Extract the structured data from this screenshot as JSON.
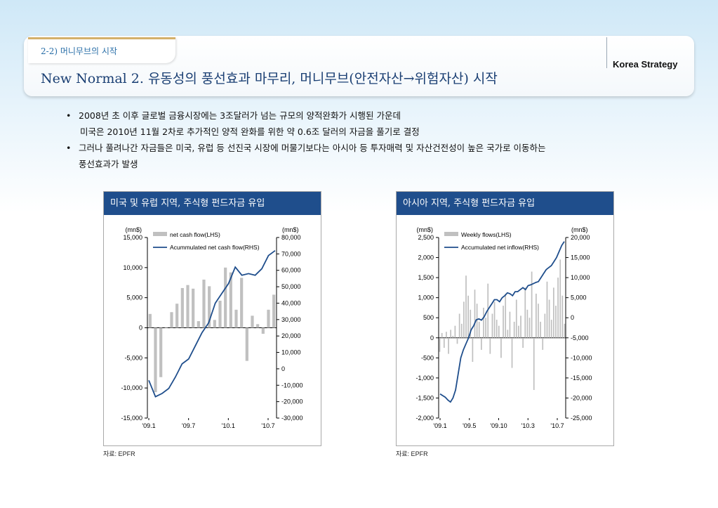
{
  "header": {
    "section": "2-2) 머니무브의 시작",
    "title": "New Normal 2. 유동성의 풍선효과 마무리, 머니무브(안전자산→위험자산) 시작",
    "brand": "Korea Strategy"
  },
  "bullets": [
    {
      "line1": "2008년 초 이후 글로벌 금융시장에는 3조달러가 넘는 규모의 양적완화가 시행된 가운데",
      "line2": "미국은 2010년 11월 2차로 추가적인 양적 완화를 위한 약 0.6조 달러의 자금을 풀기로 결정"
    },
    {
      "line1": "그러나 풀려나간 자금들은 미국, 유럽 등 선진국 시장에 머물기보다는 아시아 등 투자매력 및 자산건전성이 높은 국가로 이동하는",
      "line2": "풍선효과가 발생"
    }
  ],
  "chart_data": [
    {
      "type": "bar+line",
      "title": "미국 및 유럽 지역, 주식형 펀드자금 유입",
      "y_left_unit": "(mn$)",
      "y_right_unit": "(mn$)",
      "ylim_left": [
        -15000,
        15000
      ],
      "ylim_right": [
        -30000,
        80000
      ],
      "left_ticks": [
        "15,000",
        "10,000",
        "5,000",
        "0",
        "-5,000",
        "-10,000",
        "-15,000"
      ],
      "right_ticks": [
        "80,000",
        "70,000",
        "60,000",
        "50,000",
        "40,000",
        "30,000",
        "20,000",
        "10,000",
        "0",
        "-10,000",
        "-20,000",
        "-30,000"
      ],
      "x_ticks": [
        "'09.1",
        "'09.7",
        "'10.1",
        "'10.7"
      ],
      "legend_position": "top-left",
      "bar_series": {
        "name": "net cash flow(LHS)",
        "color": "#c0c0c0",
        "values": [
          2300,
          -10700,
          -8200,
          0,
          2600,
          4000,
          6600,
          7100,
          6500,
          1100,
          8000,
          6900,
          1300,
          4500,
          10000,
          9200,
          3000,
          8300,
          -5500,
          2000,
          600,
          -1000,
          3000,
          5500
        ]
      },
      "line_series": {
        "name": "Acummulated net cash flow(RHS)",
        "color": "#1f4e8c",
        "values": [
          -7000,
          -17000,
          -15000,
          -12000,
          -5000,
          3000,
          6000,
          14000,
          22000,
          28000,
          40000,
          46000,
          52000,
          62000,
          57000,
          58000,
          57000,
          61000,
          69000,
          72000
        ]
      }
    },
    {
      "type": "bar+line",
      "title": "아시아 지역, 주식형 펀드자금 유입",
      "y_left_unit": "(mn$)",
      "y_right_unit": "(mn$)",
      "ylim_left": [
        -2000,
        2500
      ],
      "ylim_right": [
        -25000,
        20000
      ],
      "left_ticks": [
        "2,500",
        "2,000",
        "1,500",
        "1,000",
        "500",
        "0",
        "-500",
        "-1,000",
        "-1,500",
        "-2,000"
      ],
      "right_ticks": [
        "20,000",
        "15,000",
        "10,000",
        "5,000",
        "0",
        "-5,000",
        "-10,000",
        "-15,000",
        "-20,000",
        "-25,000"
      ],
      "x_ticks": [
        "'09.1",
        "'09.5",
        "'09.10",
        "'10.3",
        "'10.7"
      ],
      "legend_position": "top-left",
      "bar_series": {
        "name": "Weekly flows(LHS)",
        "color": "#c0c0c0",
        "values": [
          -350,
          120,
          -250,
          150,
          -400,
          200,
          50,
          300,
          -150,
          600,
          350,
          900,
          1550,
          1050,
          700,
          -600,
          1200,
          850,
          400,
          -300,
          750,
          500,
          1350,
          -400,
          600,
          900,
          450,
          300,
          -500,
          800,
          1100,
          200,
          650,
          -750,
          400,
          950,
          300,
          550,
          -250,
          1250,
          700,
          500,
          1650,
          -1300,
          1100,
          850,
          400,
          -300,
          600,
          1400,
          950,
          450,
          1250,
          800,
          1500,
          1950,
          1050,
          350
        ]
      },
      "line_series": {
        "name": "Accumulated net inflow(RHS)",
        "color": "#1f4e8c",
        "values": [
          -19000,
          -19400,
          -19800,
          -20500,
          -21000,
          -20000,
          -18000,
          -14000,
          -10000,
          -8000,
          -6500,
          -5000,
          -3000,
          -2000,
          -500,
          -300,
          -600,
          200,
          1500,
          2500,
          3500,
          4500,
          4500,
          4000,
          5000,
          5500,
          6200,
          6000,
          5500,
          6500,
          6500,
          7000,
          7500,
          7000,
          8000,
          8200,
          8500,
          8800,
          9000,
          10000,
          11000,
          12000,
          12500,
          13000,
          14000,
          15000,
          16500,
          18000,
          19000
        ]
      }
    }
  ],
  "source_note": "자료: EPFR"
}
